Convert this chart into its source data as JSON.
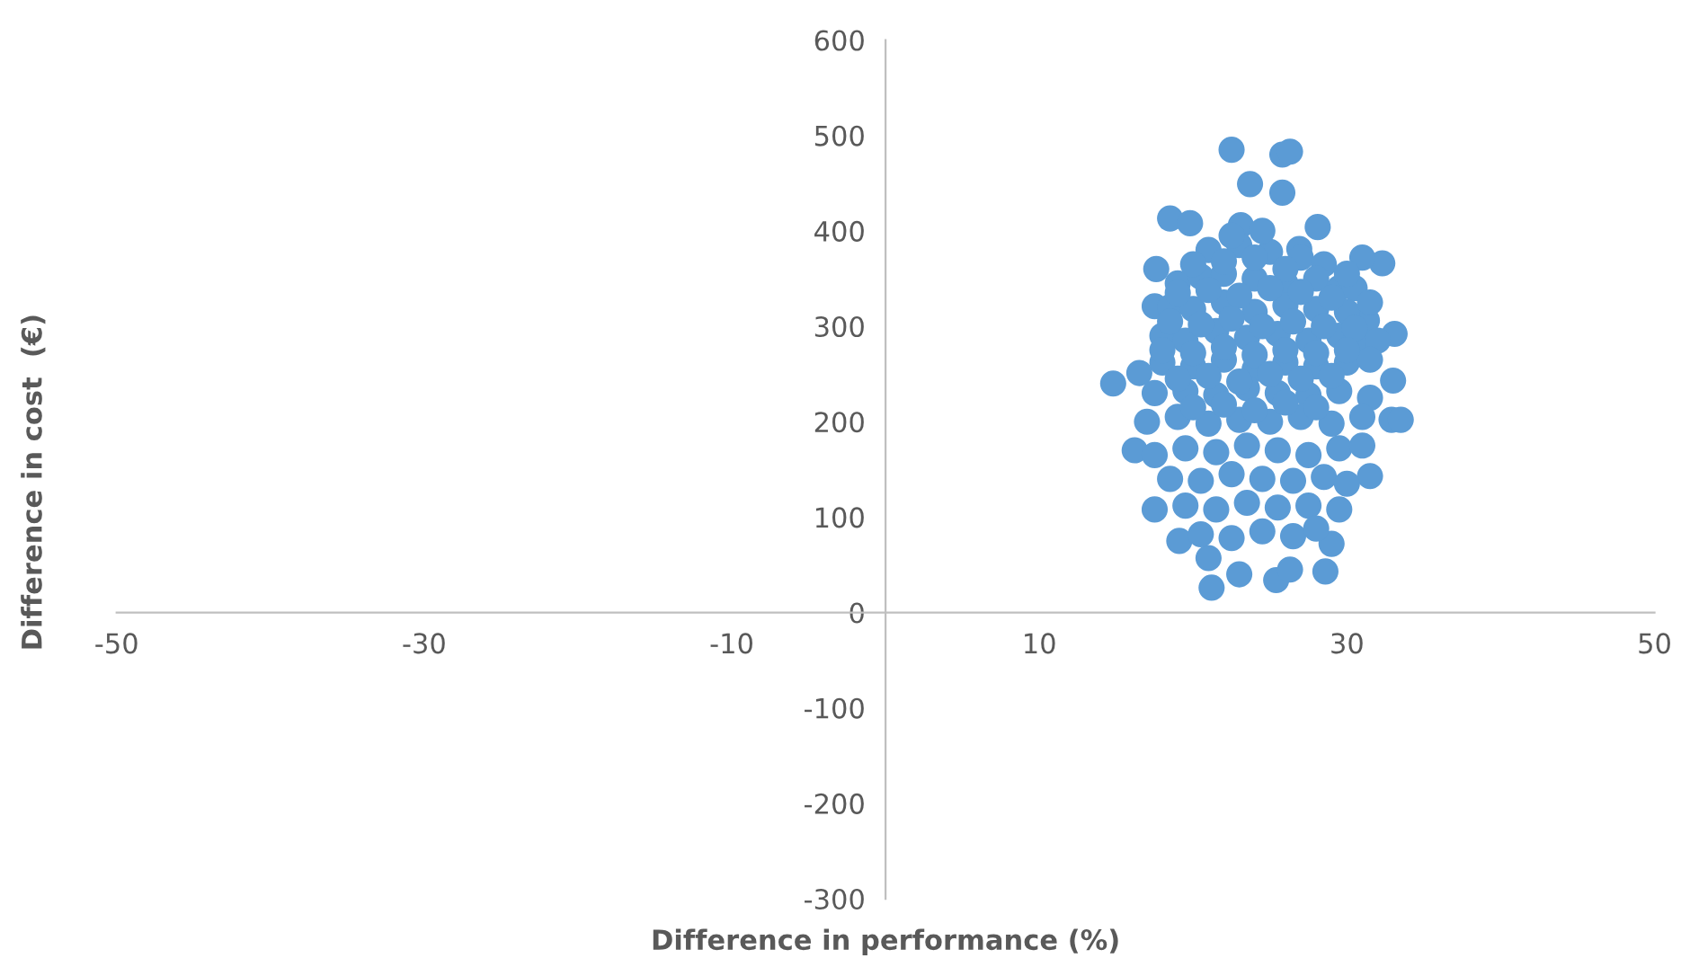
{
  "chart_data": {
    "type": "scatter",
    "xlabel": "Difference in performance (%)",
    "ylabel": "Difference in cost  (€)",
    "xlim": [
      -50,
      50
    ],
    "ylim": [
      -300,
      600
    ],
    "xticks": [
      -50,
      -30,
      -10,
      10,
      30,
      50
    ],
    "yticks": [
      -300,
      -200,
      -100,
      0,
      100,
      200,
      300,
      400,
      500,
      600
    ],
    "marker": "circle",
    "series": [
      {
        "color": "#5b9bd5",
        "x": [
          22.5,
          25.8,
          26.3,
          23.7,
          25.8,
          18.5,
          19.8,
          28.1,
          23.1,
          26.9,
          32.3,
          31.0,
          17.6,
          17.5,
          14.8,
          16.5,
          16.2,
          17.5,
          19.1,
          21.0,
          21.2,
          23.0,
          25.4,
          26.3,
          28.6,
          29.0,
          31.5,
          32.9,
          33.5,
          33.0,
          33.1,
          31.3,
          21,
          23,
          25,
          27,
          22.5,
          24.5,
          28.5,
          19,
          20.5,
          22,
          24,
          26,
          28,
          29.5,
          30.5,
          18.5,
          20,
          22,
          24,
          26,
          28,
          30,
          31.5,
          18,
          19.5,
          21.5,
          23.5,
          25.5,
          27.5,
          29.5,
          31,
          32,
          18,
          20,
          22,
          24,
          26,
          28,
          30,
          31.5,
          17.5,
          19.5,
          21.5,
          23.5,
          25.5,
          27.5,
          29.5,
          31.5,
          17,
          19,
          21,
          23,
          25,
          27,
          29,
          31,
          17.5,
          19.5,
          21.5,
          23.5,
          25.5,
          27.5,
          29.5,
          31,
          18.5,
          20.5,
          22.5,
          24.5,
          26.5,
          28.5,
          30,
          19.5,
          21.5,
          23.5,
          25.5,
          27.5,
          29.5,
          20.5,
          22.5,
          24.5,
          26.5,
          28,
          20,
          22,
          24,
          26,
          30,
          19,
          21,
          23,
          25,
          27,
          29,
          18.5,
          20.5,
          22.5,
          24.5,
          26.5,
          28.5,
          30.5,
          18,
          20,
          22,
          24,
          26,
          28,
          30,
          19,
          21,
          23,
          25,
          27,
          29,
          20,
          22,
          24,
          26,
          28
        ],
        "values": [
          485,
          480,
          483,
          449,
          440,
          413,
          408,
          404,
          406,
          381,
          366,
          372,
          360,
          321,
          240,
          251,
          170,
          108,
          75,
          57,
          26,
          40,
          34,
          45,
          43,
          72,
          143,
          202,
          202,
          243,
          292,
          306,
          380,
          385,
          378,
          372,
          395,
          400,
          365,
          345,
          352,
          355,
          350,
          345,
          350,
          340,
          340,
          320,
          318,
          325,
          315,
          322,
          318,
          315,
          325,
          290,
          285,
          295,
          288,
          292,
          285,
          290,
          280,
          285,
          262,
          258,
          265,
          255,
          262,
          258,
          262,
          265,
          230,
          232,
          228,
          235,
          230,
          228,
          232,
          225,
          200,
          205,
          198,
          202,
          200,
          205,
          198,
          205,
          165,
          172,
          168,
          175,
          170,
          165,
          172,
          175,
          140,
          138,
          145,
          140,
          138,
          142,
          135,
          112,
          108,
          115,
          110,
          112,
          108,
          82,
          78,
          85,
          80,
          88,
          365,
          368,
          372,
          360,
          355,
          335,
          338,
          332,
          340,
          336,
          330,
          305,
          302,
          308,
          300,
          305,
          300,
          298,
          275,
          272,
          278,
          270,
          275,
          272,
          275,
          245,
          248,
          242,
          250,
          245,
          248,
          215,
          218,
          212,
          220,
          215
        ]
      }
    ]
  }
}
